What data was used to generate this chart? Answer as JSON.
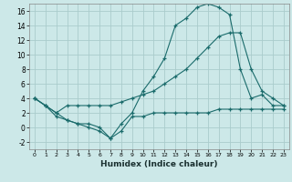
{
  "xlabel": "Humidex (Indice chaleur)",
  "background_color": "#cce8e8",
  "grid_color": "#aacccc",
  "line_color": "#1a6b6b",
  "xlim": [
    -0.5,
    23.5
  ],
  "ylim": [
    -3,
    17
  ],
  "xticks": [
    0,
    1,
    2,
    3,
    4,
    5,
    6,
    7,
    8,
    9,
    10,
    11,
    12,
    13,
    14,
    15,
    16,
    17,
    18,
    19,
    20,
    21,
    22,
    23
  ],
  "yticks": [
    -2,
    0,
    2,
    4,
    6,
    8,
    10,
    12,
    14,
    16
  ],
  "line1_x": [
    0,
    1,
    2,
    3,
    4,
    5,
    6,
    7,
    8,
    9,
    10,
    11,
    12,
    13,
    14,
    15,
    16,
    17,
    18,
    19,
    20,
    21,
    22,
    23
  ],
  "line1_y": [
    4,
    3,
    2,
    1,
    0.5,
    0,
    -0.5,
    -1.5,
    0.5,
    2,
    5,
    7,
    9.5,
    14,
    15,
    16.5,
    17,
    16.5,
    15.5,
    8,
    4,
    4.5,
    3,
    3
  ],
  "line2_x": [
    0,
    1,
    2,
    3,
    4,
    5,
    6,
    7,
    8,
    9,
    10,
    11,
    12,
    13,
    14,
    15,
    16,
    17,
    18,
    19,
    20,
    21,
    22,
    23
  ],
  "line2_y": [
    4,
    3,
    2,
    3,
    3,
    3,
    3,
    3,
    3.5,
    4,
    4.5,
    5,
    6,
    7,
    8,
    9.5,
    11,
    12.5,
    13,
    13,
    8,
    5,
    4,
    3
  ],
  "line3_x": [
    0,
    1,
    2,
    3,
    4,
    5,
    6,
    7,
    8,
    9,
    10,
    11,
    12,
    13,
    14,
    15,
    16,
    17,
    18,
    19,
    20,
    21,
    22,
    23
  ],
  "line3_y": [
    4,
    3,
    1.5,
    1,
    0.5,
    0.5,
    0,
    -1.5,
    -0.5,
    1.5,
    1.5,
    2,
    2,
    2,
    2,
    2,
    2,
    2.5,
    2.5,
    2.5,
    2.5,
    2.5,
    2.5,
    2.5
  ]
}
